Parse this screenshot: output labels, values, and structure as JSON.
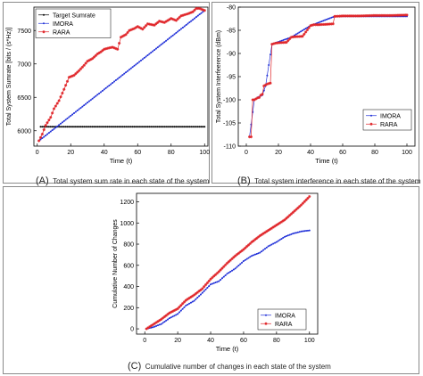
{
  "colors": {
    "imora": "#1f2fd8",
    "rara": "#e0262a",
    "target": "#000000"
  },
  "panels": [
    {
      "letter": "(A)",
      "caption": "Total system sum rate in each state of the system",
      "chart_data": {
        "type": "line",
        "xlabel": "Time (t)",
        "ylabel": "Total System Sumrate [bits / (s*Hz)]",
        "xlim": [
          -2,
          102
        ],
        "ylim": [
          5770,
          7850
        ],
        "xticks": [
          0,
          20,
          40,
          60,
          80,
          100
        ],
        "yticks": [
          6000,
          6500,
          7000,
          7500
        ],
        "legend_position": "top-left",
        "series": [
          {
            "name": "Target Sumrate",
            "style": "target",
            "x": [
              2,
              100
            ],
            "values": [
              6060,
              6060
            ]
          },
          {
            "name": "IMORA",
            "style": "imora",
            "x": [
              1,
              100
            ],
            "values": [
              5850,
              7800
            ]
          },
          {
            "name": "RARA",
            "style": "rara",
            "x": [
              1,
              3,
              5,
              8,
              10,
              13,
              16,
              19,
              22,
              25,
              28,
              30,
              33,
              36,
              38,
              40,
              43,
              45,
              48,
              50,
              53,
              55,
              58,
              60,
              63,
              66,
              70,
              73,
              76,
              80,
              83,
              86,
              90,
              93,
              95,
              97,
              100
            ],
            "values": [
              5850,
              5950,
              6080,
              6200,
              6330,
              6450,
              6620,
              6800,
              6830,
              6900,
              6980,
              7040,
              7080,
              7150,
              7180,
              7220,
              7240,
              7250,
              7220,
              7400,
              7440,
              7500,
              7530,
              7560,
              7520,
              7600,
              7580,
              7640,
              7620,
              7680,
              7650,
              7720,
              7750,
              7780,
              7830,
              7830,
              7800
            ]
          }
        ]
      }
    },
    {
      "letter": "(B)",
      "caption": "Total system interference in each state of the system",
      "chart_data": {
        "type": "line",
        "xlabel": "Time (t)",
        "ylabel": "Total System Interfeerence (dBm)",
        "xlim": [
          -5,
          105
        ],
        "ylim": [
          -110,
          -80
        ],
        "xticks": [
          0,
          20,
          40,
          60,
          80,
          100
        ],
        "yticks": [
          -110,
          -105,
          -100,
          -95,
          -90,
          -85,
          -80
        ],
        "legend_position": "bottom-right",
        "series": [
          {
            "name": "IMORA",
            "style": "imora",
            "x": [
              2,
              5,
              7,
              10,
              12,
              16,
              28,
              40,
              55,
              100
            ],
            "values": [
              -108,
              -100,
              -99.5,
              -99,
              -97,
              -88,
              -86.5,
              -84,
              -82,
              -82
            ]
          },
          {
            "name": "RARA",
            "style": "rara",
            "x": [
              2,
              3,
              4,
              5,
              6,
              7,
              8,
              9,
              10,
              11,
              12,
              13,
              14,
              15,
              16,
              18,
              20,
              25,
              28,
              30,
              35,
              40,
              42,
              45,
              50,
              54,
              55,
              60,
              70,
              80,
              90,
              100
            ],
            "values": [
              -108,
              -108,
              -100,
              -100,
              -99.8,
              -99.6,
              -99.5,
              -99,
              -98.8,
              -97,
              -96.8,
              -96.6,
              -96.5,
              -96.4,
              -88,
              -87.8,
              -87.7,
              -87.6,
              -86.5,
              -86.4,
              -86.3,
              -84,
              -83.8,
              -83.8,
              -83.7,
              -83.6,
              -82,
              -81.9,
              -81.9,
              -81.8,
              -81.8,
              -81.7
            ]
          }
        ]
      }
    },
    {
      "letter": "(C)",
      "caption": "Cumulative number of changes in each state of the system",
      "chart_data": {
        "type": "line",
        "xlabel": "Time (t)",
        "ylabel": "Cumulative Number of Changes",
        "xlim": [
          -5,
          105
        ],
        "ylim": [
          -50,
          1280
        ],
        "xticks": [
          0,
          20,
          40,
          60,
          80,
          100
        ],
        "yticks": [
          0,
          200,
          400,
          600,
          800,
          1000,
          1200
        ],
        "legend_position": "bottom-right",
        "series": [
          {
            "name": "IMORA",
            "style": "imora",
            "x": [
              1,
              5,
              10,
              15,
              20,
              25,
              30,
              35,
              40,
              45,
              50,
              55,
              60,
              65,
              70,
              75,
              80,
              85,
              90,
              95,
              100
            ],
            "values": [
              0,
              15,
              45,
              100,
              140,
              220,
              265,
              340,
              420,
              450,
              520,
              570,
              640,
              690,
              720,
              780,
              820,
              870,
              900,
              920,
              930
            ]
          },
          {
            "name": "RARA",
            "style": "rara",
            "x": [
              1,
              5,
              10,
              15,
              20,
              25,
              30,
              35,
              40,
              45,
              50,
              55,
              60,
              65,
              70,
              75,
              80,
              85,
              90,
              95,
              100
            ],
            "values": [
              0,
              40,
              90,
              150,
              190,
              270,
              320,
              380,
              470,
              540,
              620,
              690,
              750,
              820,
              880,
              930,
              980,
              1030,
              1100,
              1170,
              1250
            ]
          }
        ]
      }
    }
  ]
}
